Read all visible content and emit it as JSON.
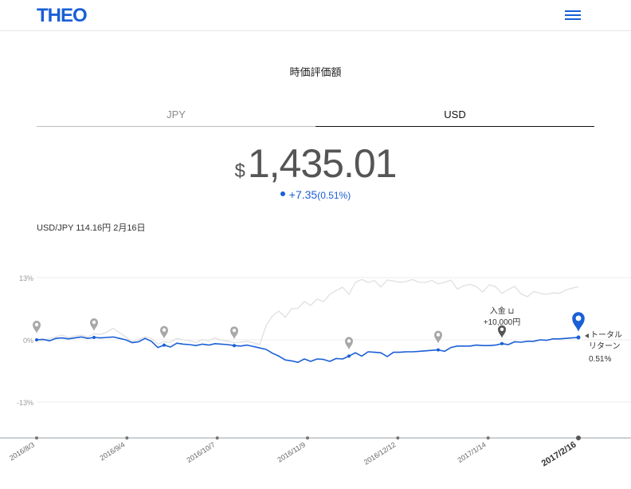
{
  "header": {
    "logo": "THEO",
    "menu_icon": "hamburger-menu-icon"
  },
  "page": {
    "title": "時価評価額"
  },
  "tabs": [
    {
      "label": "JPY",
      "active": false
    },
    {
      "label": "USD",
      "active": true
    }
  ],
  "valuation": {
    "currency_symbol": "$",
    "amount": "1,435.01",
    "change": "+7.35",
    "change_pct": "(0.51%)"
  },
  "fx": {
    "text": "USD/JPY 114.16円 2月16日"
  },
  "colors": {
    "brand": "#1a5fd6",
    "benchmark": "#e0e0e0",
    "marker_gray": "#a0a0a0"
  },
  "chart_data": {
    "type": "line",
    "y_tick_labels": [
      "13%",
      "0%",
      "-13%"
    ],
    "ylim": [
      -20,
      13
    ],
    "x_tick_labels": [
      "2016/8/3",
      "2016/9/4",
      "2016/10/7",
      "2016/11/9",
      "2016/12/12",
      "2017/1/14",
      "2017/2/16"
    ],
    "highlighted_x_label": "2017/2/16",
    "series": [
      {
        "color": "#1a5fd6",
        "values": [
          0,
          0.1,
          -0.2,
          0.3,
          0.4,
          0.2,
          0.4,
          0.6,
          0.3,
          0.5,
          0.4,
          0.5,
          0.6,
          0.3,
          0.0,
          -0.6,
          -0.4,
          0.3,
          -0.3,
          -1.6,
          -1.1,
          -1.5,
          -0.7,
          -0.9,
          -1.0,
          -1.2,
          -0.9,
          -1.1,
          -0.8,
          -0.9,
          -1.0,
          -1.2,
          -1.3,
          -1.1,
          -1.4,
          -1.7,
          -2.0,
          -2.8,
          -3.4,
          -4.2,
          -4.4,
          -4.7,
          -4.0,
          -4.5,
          -4.0,
          -4.1,
          -4.5,
          -3.9,
          -4.0,
          -3.4,
          -2.7,
          -3.4,
          -2.5,
          -2.6,
          -2.7,
          -3.5,
          -2.6,
          -2.6,
          -2.5,
          -2.5,
          -2.4,
          -2.3,
          -2.2,
          -2.1,
          -2.4,
          -1.6,
          -1.3,
          -1.3,
          -1.3,
          -1.1,
          -1.2,
          -1.2,
          -1.1,
          -0.8,
          -1.0,
          -0.4,
          -0.5,
          -0.3,
          -0.3,
          0.0,
          -0.1,
          0.2,
          0.2,
          0.3,
          0.4,
          0.5
        ]
      },
      {
        "color": "#e0e0e0",
        "values": [
          0,
          -0.2,
          0.3,
          0.6,
          1.0,
          0.5,
          0.8,
          1.0,
          0.6,
          1.3,
          1.1,
          1.6,
          2.4,
          1.5,
          0.6,
          -0.4,
          0.1,
          0.6,
          0.3,
          -0.9,
          -0.4,
          -0.5,
          0.3,
          0.0,
          -0.2,
          -0.6,
          0.1,
          -0.2,
          0.4,
          -0.1,
          -0.3,
          -0.6,
          -0.5,
          -0.3,
          -0.6,
          -1.0,
          3.0,
          5.0,
          6.0,
          4.7,
          6.5,
          6.6,
          8.0,
          7.2,
          8.5,
          8.0,
          9.5,
          10.3,
          11.0,
          9.5,
          12.0,
          12.6,
          12.0,
          12.4,
          11.0,
          12.5,
          12.3,
          12.0,
          12.2,
          12.6,
          12.0,
          12.0,
          12.4,
          11.7,
          12.0,
          12.5,
          10.6,
          11.3,
          11.6,
          11.1,
          10.0,
          11.5,
          11.1,
          9.7,
          10.5,
          11.2,
          9.6,
          9.0,
          10.1,
          9.7,
          9.5,
          9.8,
          9.7,
          10.4,
          10.8,
          11.1
        ]
      }
    ],
    "annotations": [
      {
        "type": "deposit",
        "label": "入金",
        "amount": "+10,000円"
      },
      {
        "type": "current",
        "label": "トータル",
        "label2": "リターン",
        "value": "0.51%"
      }
    ]
  }
}
